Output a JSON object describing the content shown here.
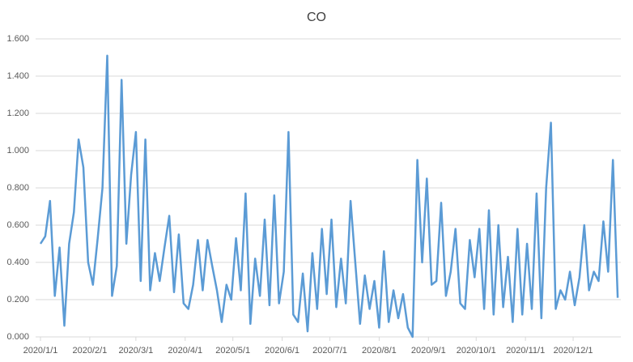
{
  "chart_data": {
    "type": "line",
    "title": "CO",
    "x": [
      "2020/1/1",
      "2020/1/4",
      "2020/1/7",
      "2020/1/10",
      "2020/1/13",
      "2020/1/16",
      "2020/1/19",
      "2020/1/22",
      "2020/1/25",
      "2020/1/28",
      "2020/1/31",
      "2020/2/3",
      "2020/2/6",
      "2020/2/9",
      "2020/2/12",
      "2020/2/15",
      "2020/2/18",
      "2020/2/21",
      "2020/2/24",
      "2020/2/27",
      "2020/3/1",
      "2020/3/4",
      "2020/3/7",
      "2020/3/10",
      "2020/3/13",
      "2020/3/16",
      "2020/3/19",
      "2020/3/22",
      "2020/3/25",
      "2020/3/28",
      "2020/3/31",
      "2020/4/3",
      "2020/4/6",
      "2020/4/9",
      "2020/4/12",
      "2020/4/15",
      "2020/4/18",
      "2020/4/21",
      "2020/4/24",
      "2020/4/27",
      "2020/4/30",
      "2020/5/3",
      "2020/5/6",
      "2020/5/9",
      "2020/5/12",
      "2020/5/15",
      "2020/5/18",
      "2020/5/21",
      "2020/5/24",
      "2020/5/27",
      "2020/5/30",
      "2020/6/2",
      "2020/6/5",
      "2020/6/8",
      "2020/6/11",
      "2020/6/14",
      "2020/6/17",
      "2020/6/20",
      "2020/6/23",
      "2020/6/26",
      "2020/6/29",
      "2020/7/2",
      "2020/7/5",
      "2020/7/8",
      "2020/7/11",
      "2020/7/14",
      "2020/7/17",
      "2020/7/20",
      "2020/7/23",
      "2020/7/26",
      "2020/7/29",
      "2020/8/1",
      "2020/8/4",
      "2020/8/7",
      "2020/8/10",
      "2020/8/13",
      "2020/8/16",
      "2020/8/19",
      "2020/8/22",
      "2020/8/25",
      "2020/8/28",
      "2020/8/31",
      "2020/9/3",
      "2020/9/6",
      "2020/9/9",
      "2020/9/12",
      "2020/9/15",
      "2020/9/18",
      "2020/9/21",
      "2020/9/24",
      "2020/9/27",
      "2020/9/30",
      "2020/10/3",
      "2020/10/6",
      "2020/10/9",
      "2020/10/12",
      "2020/10/15",
      "2020/10/18",
      "2020/10/21",
      "2020/10/24",
      "2020/10/27",
      "2020/10/30",
      "2020/11/2",
      "2020/11/5",
      "2020/11/8",
      "2020/11/11",
      "2020/11/14",
      "2020/11/17",
      "2020/11/20",
      "2020/11/23",
      "2020/11/26",
      "2020/11/29",
      "2020/12/2",
      "2020/12/5",
      "2020/12/8",
      "2020/12/11",
      "2020/12/14",
      "2020/12/17",
      "2020/12/20",
      "2020/12/23",
      "2020/12/26",
      "2020/12/29"
    ],
    "series": [
      {
        "color": "#5b9bd5",
        "values": [
          0.5,
          0.54,
          0.73,
          0.22,
          0.48,
          0.06,
          0.5,
          0.67,
          1.06,
          0.91,
          0.4,
          0.28,
          0.53,
          0.8,
          1.51,
          0.22,
          0.38,
          1.38,
          0.5,
          0.87,
          1.1,
          0.3,
          1.06,
          0.25,
          0.45,
          0.3,
          0.48,
          0.65,
          0.24,
          0.55,
          0.18,
          0.15,
          0.28,
          0.52,
          0.25,
          0.52,
          0.38,
          0.25,
          0.08,
          0.28,
          0.2,
          0.53,
          0.25,
          0.77,
          0.07,
          0.42,
          0.22,
          0.63,
          0.17,
          0.76,
          0.18,
          0.35,
          1.1,
          0.12,
          0.08,
          0.34,
          0.03,
          0.45,
          0.15,
          0.58,
          0.23,
          0.63,
          0.16,
          0.42,
          0.18,
          0.73,
          0.4,
          0.07,
          0.33,
          0.15,
          0.3,
          0.05,
          0.46,
          0.08,
          0.25,
          0.1,
          0.23,
          0.05,
          0.0,
          0.95,
          0.4,
          0.85,
          0.28,
          0.3,
          0.72,
          0.22,
          0.35,
          0.58,
          0.18,
          0.15,
          0.52,
          0.32,
          0.58,
          0.15,
          0.68,
          0.12,
          0.6,
          0.16,
          0.43,
          0.08,
          0.58,
          0.12,
          0.5,
          0.15,
          0.77,
          0.1,
          0.8,
          1.15,
          0.15,
          0.25,
          0.2,
          0.35,
          0.17,
          0.32,
          0.6,
          0.25,
          0.35,
          0.3,
          0.62,
          0.35,
          0.95,
          0.21
        ]
      }
    ],
    "xlim": [
      "2020/1/1",
      "2020/12/31"
    ],
    "xticks": [
      "2020/1/1",
      "2020/2/1",
      "2020/3/1",
      "2020/4/1",
      "2020/5/1",
      "2020/6/1",
      "2020/7/1",
      "2020/8/1",
      "2020/9/1",
      "2020/10/1",
      "2020/11/1",
      "2020/12/1"
    ],
    "ylim": [
      0,
      1.6
    ],
    "yticks": [
      {
        "value": 0,
        "label": "0.000"
      },
      {
        "value": 0.2,
        "label": "0.200"
      },
      {
        "value": 0.4,
        "label": "0.400"
      },
      {
        "value": 0.6,
        "label": "0.600"
      },
      {
        "value": 0.8,
        "label": "0.800"
      },
      {
        "value": 1.0,
        "label": "1.000"
      },
      {
        "value": 1.2,
        "label": "1.200"
      },
      {
        "value": 1.4,
        "label": "1.400"
      },
      {
        "value": 1.6,
        "label": "1.600"
      }
    ],
    "grid": true
  }
}
